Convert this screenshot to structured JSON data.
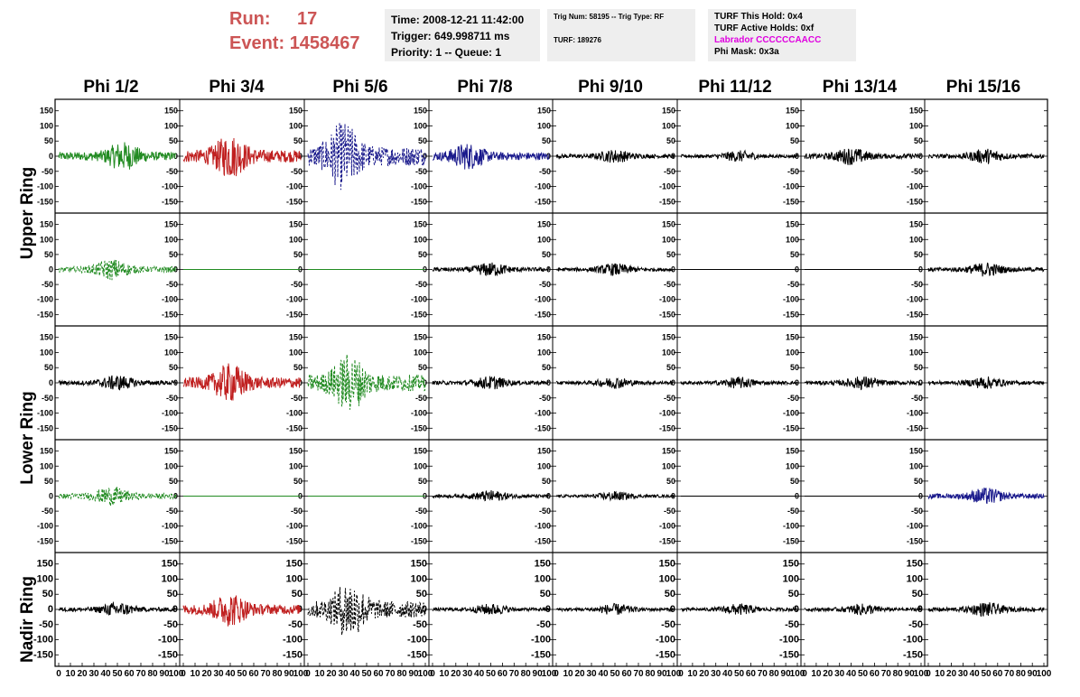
{
  "header": {
    "run_label": "Run:",
    "run_value": "17",
    "event_label": "Event:",
    "event_value": "1458467",
    "time": "Time: 2008-12-21 11:42:00",
    "trigger": "Trigger: 649.998711 ms",
    "priority": "Priority: 1 -- Queue: 1",
    "trig_num": "Trig Num: 58195 -- Trig Type: RF",
    "turf": "TURF: 189276",
    "turf_hold": "TURF This Hold: 0x4",
    "turf_active": "TURF Active Holds: 0xf",
    "labrador": "Labrador CCCCCCAACC",
    "phi_mask": "Phi Mask: 0x3a"
  },
  "columns": [
    "Phi 1/2",
    "Phi 3/4",
    "Phi 5/6",
    "Phi 7/8",
    "Phi 9/10",
    "Phi 11/12",
    "Phi 13/14",
    "Phi 15/16"
  ],
  "rings": [
    "Upper Ring",
    "Lower Ring",
    "Nadir Ring"
  ],
  "colors": {
    "green": "#228b22",
    "red": "#c02020",
    "blue": "#1a1a8c",
    "black": "#000000",
    "run": "#cc5555",
    "labrador": "#e000e0"
  },
  "chart_data": {
    "type": "line",
    "title": "",
    "xlabel": "",
    "ylabel": "",
    "xlim": [
      0,
      100
    ],
    "ylim": [
      -170,
      170
    ],
    "x_ticks": [
      0,
      10,
      20,
      30,
      40,
      50,
      60,
      70,
      80,
      90,
      100
    ],
    "y_ticks": [
      -150,
      -100,
      -50,
      0,
      50,
      100,
      150
    ],
    "grid": false,
    "rows": [
      [
        {
          "color": "green",
          "dashed": false,
          "amp": 30,
          "peak": 55
        },
        {
          "color": "red",
          "dashed": false,
          "amp": 45,
          "peak": 40
        },
        {
          "color": "blue",
          "dashed": true,
          "amp": 70,
          "peak": 30
        },
        {
          "color": "blue",
          "dashed": false,
          "amp": 28,
          "peak": 30
        },
        {
          "color": "black",
          "dashed": false,
          "amp": 14,
          "peak": 50
        },
        {
          "color": "black",
          "dashed": false,
          "amp": 12,
          "peak": 50
        },
        {
          "color": "black",
          "dashed": false,
          "amp": 18,
          "peak": 40
        },
        {
          "color": "black",
          "dashed": false,
          "amp": 16,
          "peak": 50
        }
      ],
      [
        {
          "color": "green",
          "dashed": true,
          "amp": 22,
          "peak": 45
        },
        {
          "color": "green",
          "dashed": false,
          "amp": 0,
          "peak": 50
        },
        {
          "color": "green",
          "dashed": false,
          "amp": 0,
          "peak": 50
        },
        {
          "color": "black",
          "dashed": false,
          "amp": 15,
          "peak": 50
        },
        {
          "color": "black",
          "dashed": false,
          "amp": 13,
          "peak": 50
        },
        {
          "color": "black",
          "dashed": false,
          "amp": 0,
          "peak": 50
        },
        {
          "color": "black",
          "dashed": false,
          "amp": 0,
          "peak": 50
        },
        {
          "color": "black",
          "dashed": false,
          "amp": 15,
          "peak": 50
        }
      ],
      [
        {
          "color": "black",
          "dashed": false,
          "amp": 16,
          "peak": 50
        },
        {
          "color": "red",
          "dashed": false,
          "amp": 40,
          "peak": 40
        },
        {
          "color": "green",
          "dashed": true,
          "amp": 60,
          "peak": 35
        },
        {
          "color": "black",
          "dashed": false,
          "amp": 14,
          "peak": 50
        },
        {
          "color": "black",
          "dashed": false,
          "amp": 12,
          "peak": 50
        },
        {
          "color": "black",
          "dashed": false,
          "amp": 12,
          "peak": 50
        },
        {
          "color": "black",
          "dashed": false,
          "amp": 14,
          "peak": 50
        },
        {
          "color": "black",
          "dashed": false,
          "amp": 13,
          "peak": 50
        }
      ],
      [
        {
          "color": "green",
          "dashed": true,
          "amp": 20,
          "peak": 45
        },
        {
          "color": "green",
          "dashed": false,
          "amp": 0,
          "peak": 50
        },
        {
          "color": "green",
          "dashed": false,
          "amp": 0,
          "peak": 50
        },
        {
          "color": "black",
          "dashed": false,
          "amp": 12,
          "peak": 50
        },
        {
          "color": "black",
          "dashed": false,
          "amp": 10,
          "peak": 50
        },
        {
          "color": "black",
          "dashed": false,
          "amp": 0,
          "peak": 50
        },
        {
          "color": "black",
          "dashed": false,
          "amp": 0,
          "peak": 50
        },
        {
          "color": "blue",
          "dashed": false,
          "amp": 18,
          "peak": 50
        }
      ],
      [
        {
          "color": "black",
          "dashed": false,
          "amp": 15,
          "peak": 50
        },
        {
          "color": "red",
          "dashed": false,
          "amp": 35,
          "peak": 40
        },
        {
          "color": "black",
          "dashed": true,
          "amp": 60,
          "peak": 35
        },
        {
          "color": "black",
          "dashed": false,
          "amp": 12,
          "peak": 50
        },
        {
          "color": "black",
          "dashed": false,
          "amp": 12,
          "peak": 50
        },
        {
          "color": "black",
          "dashed": false,
          "amp": 12,
          "peak": 50
        },
        {
          "color": "black",
          "dashed": false,
          "amp": 12,
          "peak": 50
        },
        {
          "color": "black",
          "dashed": false,
          "amp": 15,
          "peak": 50
        }
      ]
    ]
  }
}
